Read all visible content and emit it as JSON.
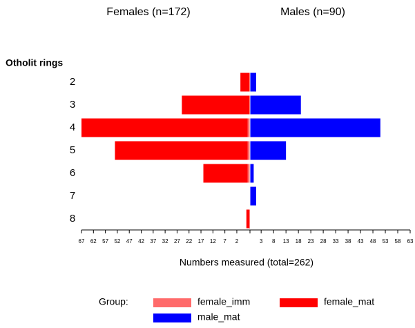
{
  "chart_data": {
    "type": "bar",
    "orientation": "horizontal",
    "title_left": "Females (n=172)",
    "title_right": "Males (n=90)",
    "ylabel": "Otholit rings",
    "xlabel": "Numbers measured (total=262)",
    "legend_title": "Group:",
    "categories": [
      "2",
      "3",
      "4",
      "5",
      "6",
      "7",
      "8"
    ],
    "xlim_left": [
      -3.5,
      67
    ],
    "xticks_left": [
      67,
      62,
      57,
      52,
      47,
      42,
      37,
      32,
      27,
      22,
      17,
      12,
      7,
      2
    ],
    "xlim_right": [
      -1.5,
      63
    ],
    "xticks_right": [
      3,
      8,
      13,
      18,
      23,
      28,
      33,
      38,
      43,
      48,
      53,
      58,
      63
    ],
    "series": [
      {
        "name": "female_imm",
        "color": "#ff6a6a",
        "side": "left",
        "values": [
          null,
          null,
          -2.5,
          -2.5,
          -2.5,
          null,
          null
        ]
      },
      {
        "name": "female_mat",
        "color": "#ff0000",
        "side": "left",
        "values": [
          0.5,
          25,
          67,
          53,
          16,
          null,
          -2
        ]
      },
      {
        "name": "male_mat",
        "color": "#0000ff",
        "side": "right",
        "values": [
          1,
          19,
          51,
          13,
          0,
          1,
          null
        ]
      }
    ]
  }
}
